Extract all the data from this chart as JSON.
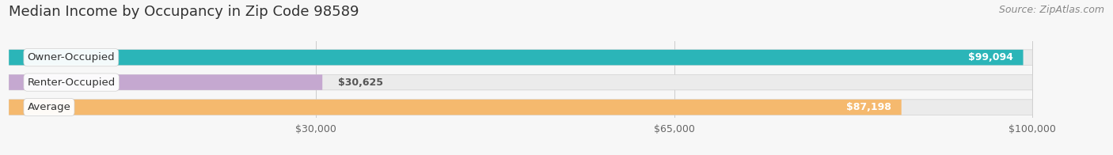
{
  "title": "Median Income by Occupancy in Zip Code 98589",
  "source": "Source: ZipAtlas.com",
  "categories": [
    "Owner-Occupied",
    "Renter-Occupied",
    "Average"
  ],
  "values": [
    99094,
    30625,
    87198
  ],
  "labels": [
    "$99,094",
    "$30,625",
    "$87,198"
  ],
  "bar_colors": [
    "#2bb5b8",
    "#c5a8d0",
    "#f5b96e"
  ],
  "bar_bg_colors": [
    "#ebebeb",
    "#ebebeb",
    "#ebebeb"
  ],
  "x_ticks": [
    30000,
    65000,
    100000
  ],
  "x_tick_labels": [
    "$30,000",
    "$65,000",
    "$100,000"
  ],
  "x_max": 100000,
  "xlim_max": 107000,
  "background_color": "#f7f7f7",
  "title_fontsize": 13,
  "source_fontsize": 9,
  "label_fontsize": 9.5,
  "bar_label_fontsize": 9,
  "tick_fontsize": 9,
  "bar_height": 0.62,
  "bar_gap": 1.0
}
